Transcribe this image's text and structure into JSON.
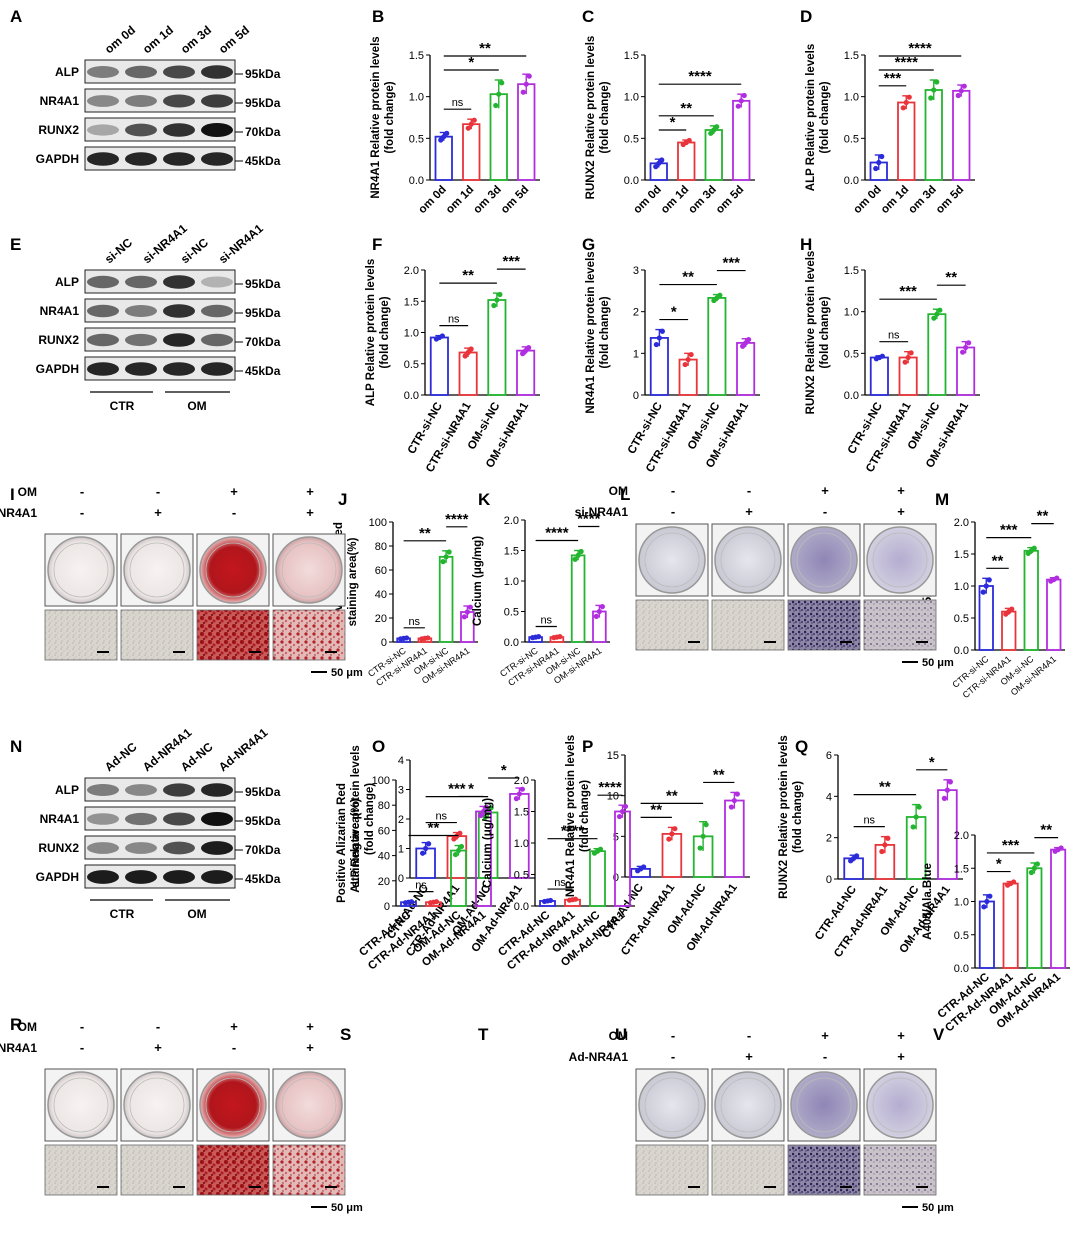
{
  "colors": {
    "blue": "#2b2bd9",
    "red": "#e8343a",
    "green": "#23b52f",
    "purple": "#b12de0"
  },
  "blots": {
    "A": {
      "panel": "A",
      "lanes": [
        "om 0d",
        "om 1d",
        "om 3d",
        "om 5d"
      ],
      "proteins": [
        "ALP",
        "NR4A1",
        "RUNX2",
        "GAPDH"
      ],
      "markers": [
        "95kDa",
        "95kDa",
        "70kDa",
        "45kDa"
      ]
    },
    "E": {
      "panel": "E",
      "lanes": [
        "si-NC",
        "si-NR4A1",
        "si-NC",
        "si-NR4A1"
      ],
      "proteins": [
        "ALP",
        "NR4A1",
        "RUNX2",
        "GAPDH"
      ],
      "markers": [
        "95kDa",
        "95kDa",
        "70kDa",
        "45kDa"
      ],
      "groups": [
        "CTR",
        "OM"
      ]
    },
    "N": {
      "panel": "N",
      "lanes": [
        "Ad-NC",
        "Ad-NR4A1",
        "Ad-NC",
        "Ad-NR4A1"
      ],
      "proteins": [
        "ALP",
        "NR4A1",
        "RUNX2",
        "GAPDH"
      ],
      "markers": [
        "95kDa",
        "95kDa",
        "70kDa",
        "45kDa"
      ],
      "groups": [
        "CTR",
        "OM"
      ]
    }
  },
  "stains": {
    "I": {
      "panel": "I",
      "rows": [
        "OM",
        "si-NR4A1"
      ],
      "signs": [
        [
          "-",
          "-",
          "+",
          "+"
        ],
        [
          "-",
          "+",
          "-",
          "+"
        ]
      ],
      "scale": "50 μm",
      "type": "red"
    },
    "L": {
      "panel": "L",
      "rows": [
        "OM",
        "si-NR4A1"
      ],
      "signs": [
        [
          "-",
          "-",
          "+",
          "+"
        ],
        [
          "-",
          "+",
          "-",
          "+"
        ]
      ],
      "scale": "50 μm",
      "type": "blue"
    },
    "R": {
      "panel": "R",
      "rows": [
        "OM",
        "Ad-NR4A1"
      ],
      "signs": [
        [
          "-",
          "-",
          "+",
          "+"
        ],
        [
          "-",
          "+",
          "-",
          "+"
        ]
      ],
      "scale": "50 μm",
      "type": "red"
    },
    "U": {
      "panel": "U",
      "rows": [
        "OM",
        "Ad-NR4A1"
      ],
      "signs": [
        [
          "-",
          "-",
          "+",
          "+"
        ],
        [
          "-",
          "+",
          "-",
          "+"
        ]
      ],
      "scale": "50 μm",
      "type": "blue"
    }
  },
  "chart_data": [
    {
      "panel": "B",
      "type": "bar",
      "ylabel": [
        "NR4A1 Relative protein levels",
        "(fold change)"
      ],
      "categories": [
        "om 0d",
        "om 1d",
        "om 3d",
        "om 5d"
      ],
      "values": [
        0.52,
        0.67,
        1.03,
        1.15
      ],
      "errors": [
        0.05,
        0.06,
        0.17,
        0.12
      ],
      "ylim": [
        0,
        1.5
      ],
      "yticks": [
        "0.0",
        "0.5",
        "1.0",
        "1.5"
      ],
      "sig": [
        {
          "from": 0,
          "to": 1,
          "label": "ns"
        },
        {
          "from": 0,
          "to": 2,
          "label": "*"
        },
        {
          "from": 0,
          "to": 3,
          "label": "**"
        }
      ]
    },
    {
      "panel": "C",
      "type": "bar",
      "ylabel": [
        "RUNX2 Relative protein levels",
        "(fold change)"
      ],
      "categories": [
        "om 0d",
        "om 1d",
        "om 3d",
        "om 5d"
      ],
      "values": [
        0.2,
        0.45,
        0.6,
        0.95
      ],
      "errors": [
        0.05,
        0.03,
        0.05,
        0.08
      ],
      "ylim": [
        0,
        1.5
      ],
      "yticks": [
        "0.0",
        "0.5",
        "1.0",
        "1.5"
      ],
      "sig": [
        {
          "from": 0,
          "to": 1,
          "label": "*"
        },
        {
          "from": 0,
          "to": 2,
          "label": "**"
        },
        {
          "from": 0,
          "to": 3,
          "label": "****"
        }
      ]
    },
    {
      "panel": "D",
      "type": "bar",
      "ylabel": [
        "ALP Relative protein levels",
        "(fold change)"
      ],
      "categories": [
        "om 0d",
        "om 1d",
        "om 3d",
        "om 5d"
      ],
      "values": [
        0.21,
        0.93,
        1.08,
        1.07
      ],
      "errors": [
        0.09,
        0.08,
        0.12,
        0.07
      ],
      "ylim": [
        0,
        1.5
      ],
      "yticks": [
        "0.0",
        "0.5",
        "1.0",
        "1.5"
      ],
      "sig": [
        {
          "from": 0,
          "to": 1,
          "label": "***"
        },
        {
          "from": 0,
          "to": 2,
          "label": "****"
        },
        {
          "from": 0,
          "to": 3,
          "label": "****"
        }
      ]
    },
    {
      "panel": "F",
      "type": "bar",
      "ylabel": [
        "ALP Relative protein levels",
        "(fold change)"
      ],
      "categories": [
        "CTR-si-NC",
        "CTR-si-NR4A1",
        "OM-si-NC",
        "OM-si-NR4A1"
      ],
      "values": [
        0.92,
        0.68,
        1.52,
        0.71
      ],
      "errors": [
        0.03,
        0.07,
        0.11,
        0.06
      ],
      "ylim": [
        0,
        2
      ],
      "yticks": [
        "0.0",
        "0.5",
        "1.0",
        "1.5",
        "2.0"
      ],
      "sig": [
        {
          "from": 0,
          "to": 1,
          "label": "ns"
        },
        {
          "from": 0,
          "to": 2,
          "label": "**"
        },
        {
          "from": 2,
          "to": 3,
          "label": "***"
        }
      ]
    },
    {
      "panel": "G",
      "type": "bar",
      "ylabel": [
        "NR4A1 Relative protein levels",
        "(fold change)"
      ],
      "categories": [
        "CTR-si-NC",
        "CTR-si-NR4A1",
        "OM-si-NC",
        "OM-si-NR4A1"
      ],
      "values": [
        1.37,
        0.85,
        2.33,
        1.25
      ],
      "errors": [
        0.2,
        0.15,
        0.08,
        0.1
      ],
      "ylim": [
        0,
        3
      ],
      "yticks": [
        "0",
        "1",
        "2",
        "3"
      ],
      "sig": [
        {
          "from": 0,
          "to": 1,
          "label": "*"
        },
        {
          "from": 0,
          "to": 2,
          "label": "**"
        },
        {
          "from": 2,
          "to": 3,
          "label": "***"
        }
      ]
    },
    {
      "panel": "H",
      "type": "bar",
      "ylabel": [
        "RUNX2 Relative protein levels",
        "(fold change)"
      ],
      "categories": [
        "CTR-si-NC",
        "CTR-si-NR4A1",
        "OM-si-NC",
        "OM-si-NR4A1"
      ],
      "values": [
        0.45,
        0.45,
        0.97,
        0.57
      ],
      "errors": [
        0.02,
        0.07,
        0.06,
        0.07
      ],
      "ylim": [
        0,
        1.5
      ],
      "yticks": [
        "0.0",
        "0.5",
        "1.0",
        "1.5"
      ],
      "sig": [
        {
          "from": 0,
          "to": 1,
          "label": "ns"
        },
        {
          "from": 0,
          "to": 2,
          "label": "***"
        },
        {
          "from": 2,
          "to": 3,
          "label": "**"
        }
      ]
    },
    {
      "panel": "J",
      "type": "bar",
      "ylabel": [
        "Positive Alizarian Red",
        "staining area(%)"
      ],
      "categories": [
        "CTR-si-NC",
        "CTR-si-NR4A1",
        "OM-si-NC",
        "OM-si-NR4A1"
      ],
      "values": [
        3,
        3,
        71,
        25
      ],
      "errors": [
        0.5,
        0.5,
        5,
        5
      ],
      "ylim": [
        0,
        100
      ],
      "yticks": [
        "0",
        "20",
        "40",
        "60",
        "80",
        "100"
      ],
      "sig": [
        {
          "from": 0,
          "to": 1,
          "label": "ns"
        },
        {
          "from": 0,
          "to": 2,
          "label": "**"
        },
        {
          "from": 2,
          "to": 3,
          "label": "****"
        }
      ]
    },
    {
      "panel": "K",
      "type": "bar",
      "ylabel": [
        "Calcium (μg/mg)"
      ],
      "categories": [
        "CTR-si-NC",
        "CTR-si-NR4A1",
        "OM-si-NC",
        "OM-si-NR4A1"
      ],
      "values": [
        0.08,
        0.08,
        1.42,
        0.5
      ],
      "errors": [
        0.01,
        0.01,
        0.08,
        0.1
      ],
      "ylim": [
        0,
        2
      ],
      "yticks": [
        "0.0",
        "0.5",
        "1.0",
        "1.5",
        "2.0"
      ],
      "sig": [
        {
          "from": 0,
          "to": 1,
          "label": "ns"
        },
        {
          "from": 0,
          "to": 2,
          "label": "****"
        },
        {
          "from": 2,
          "to": 3,
          "label": "****"
        }
      ]
    },
    {
      "panel": "M",
      "type": "bar",
      "ylabel": [
        "A405/Ala.Blue"
      ],
      "categories": [
        "CTR-si-NC",
        "CTR-si-NR4A1",
        "OM-si-NC",
        "OM-si-NR4A1"
      ],
      "values": [
        1.0,
        0.6,
        1.55,
        1.1
      ],
      "errors": [
        0.12,
        0.05,
        0.05,
        0.03
      ],
      "ylim": [
        0,
        2
      ],
      "yticks": [
        "0.0",
        "0.5",
        "1.0",
        "1.5",
        "2.0"
      ],
      "sig": [
        {
          "from": 0,
          "to": 1,
          "label": "**"
        },
        {
          "from": 0,
          "to": 2,
          "label": "***"
        },
        {
          "from": 2,
          "to": 3,
          "label": "**"
        }
      ]
    },
    {
      "panel": "O",
      "type": "bar",
      "ylabel": [
        "ALP Relative protein levels",
        "(fold change)"
      ],
      "categories": [
        "CTR-Ad-NC",
        "CTR-Ad-NR4A1",
        "OM-Ad-NC",
        "OM-Ad-NR4A1"
      ],
      "values": [
        1.0,
        1.42,
        2.22,
        2.85
      ],
      "errors": [
        0.2,
        0.12,
        0.2,
        0.2
      ],
      "ylim": [
        0,
        4
      ],
      "yticks": [
        "0",
        "1",
        "2",
        "3",
        "4"
      ],
      "sig": [
        {
          "from": 0,
          "to": 1,
          "label": "ns"
        },
        {
          "from": 0,
          "to": 2,
          "label": "***"
        },
        {
          "from": 2,
          "to": 3,
          "label": "*"
        }
      ]
    },
    {
      "panel": "P",
      "type": "bar",
      "ylabel": [
        "NR4A1 Relative protein levels",
        "(fold change)"
      ],
      "categories": [
        "CTR-Ad-NC",
        "CTR-Ad-NR4A1",
        "OM-Ad-NC",
        "OM-Ad-NR4A1"
      ],
      "values": [
        1.0,
        5.3,
        5.0,
        9.4
      ],
      "errors": [
        0.3,
        0.8,
        1.8,
        1.0
      ],
      "ylim": [
        0,
        15
      ],
      "yticks": [
        "0",
        "5",
        "10",
        "15"
      ],
      "sig": [
        {
          "from": 0,
          "to": 1,
          "label": "**"
        },
        {
          "from": 0,
          "to": 2,
          "label": "**"
        },
        {
          "from": 2,
          "to": 3,
          "label": "**"
        }
      ]
    },
    {
      "panel": "Q",
      "type": "bar",
      "ylabel": [
        "RUNX2 Relative protein levels",
        "(fold change)"
      ],
      "categories": [
        "CTR-Ad-NC",
        "CTR-Ad-NR4A1",
        "OM-Ad-NC",
        "OM-Ad-NR4A1"
      ],
      "values": [
        1.0,
        1.65,
        3.0,
        4.3
      ],
      "errors": [
        0.15,
        0.4,
        0.6,
        0.5
      ],
      "ylim": [
        0,
        6
      ],
      "yticks": [
        "0",
        "2",
        "4",
        "6"
      ],
      "sig": [
        {
          "from": 0,
          "to": 1,
          "label": "ns"
        },
        {
          "from": 0,
          "to": 2,
          "label": "**"
        },
        {
          "from": 2,
          "to": 3,
          "label": "*"
        }
      ]
    },
    {
      "panel": "S",
      "type": "bar",
      "ylabel": [
        "Positive Alizarian Red",
        "staining area(%)"
      ],
      "categories": [
        "CTR-Ad-NC",
        "CTR-Ad-NR4A1",
        "OM-Ad-NC",
        "OM-Ad-NR4A1"
      ],
      "values": [
        3,
        3,
        44,
        75
      ],
      "errors": [
        0.5,
        0.5,
        4,
        4
      ],
      "ylim": [
        0,
        100
      ],
      "yticks": [
        "0",
        "20",
        "40",
        "60",
        "80",
        "100"
      ],
      "sig": [
        {
          "from": 0,
          "to": 1,
          "label": "ns"
        },
        {
          "from": 0,
          "to": 2,
          "label": "**"
        },
        {
          "from": 2,
          "to": 3,
          "label": "*"
        }
      ]
    },
    {
      "panel": "T",
      "type": "bar",
      "ylabel": [
        "Calcium (μg/mg)"
      ],
      "categories": [
        "CTR-Ad-NC",
        "CTR-Ad-NR4A1",
        "OM-Ad-NC",
        "OM-Ad-NR4A1"
      ],
      "values": [
        0.08,
        0.1,
        0.87,
        1.5
      ],
      "errors": [
        0.01,
        0.01,
        0.04,
        0.1
      ],
      "ylim": [
        0,
        2
      ],
      "yticks": [
        "0.0",
        "0.5",
        "1.0",
        "1.5",
        "2.0"
      ],
      "sig": [
        {
          "from": 0,
          "to": 1,
          "label": "ns"
        },
        {
          "from": 0,
          "to": 2,
          "label": "****"
        },
        {
          "from": 2,
          "to": 3,
          "label": "****"
        }
      ]
    },
    {
      "panel": "V",
      "type": "bar",
      "ylabel": [
        "A405/Ala.Blue"
      ],
      "categories": [
        "CTR-Ad-NC",
        "CTR-Ad-NR4A1",
        "OM-Ad-NC",
        "OM-Ad-NR4A1"
      ],
      "values": [
        1.0,
        1.27,
        1.5,
        1.78
      ],
      "errors": [
        0.1,
        0.03,
        0.08,
        0.03
      ],
      "ylim": [
        0,
        2
      ],
      "yticks": [
        "0.0",
        "0.5",
        "1.0",
        "1.5",
        "2.0"
      ],
      "sig": [
        {
          "from": 0,
          "to": 1,
          "label": "*"
        },
        {
          "from": 0,
          "to": 2,
          "label": "***"
        },
        {
          "from": 2,
          "to": 3,
          "label": "**"
        }
      ]
    }
  ]
}
